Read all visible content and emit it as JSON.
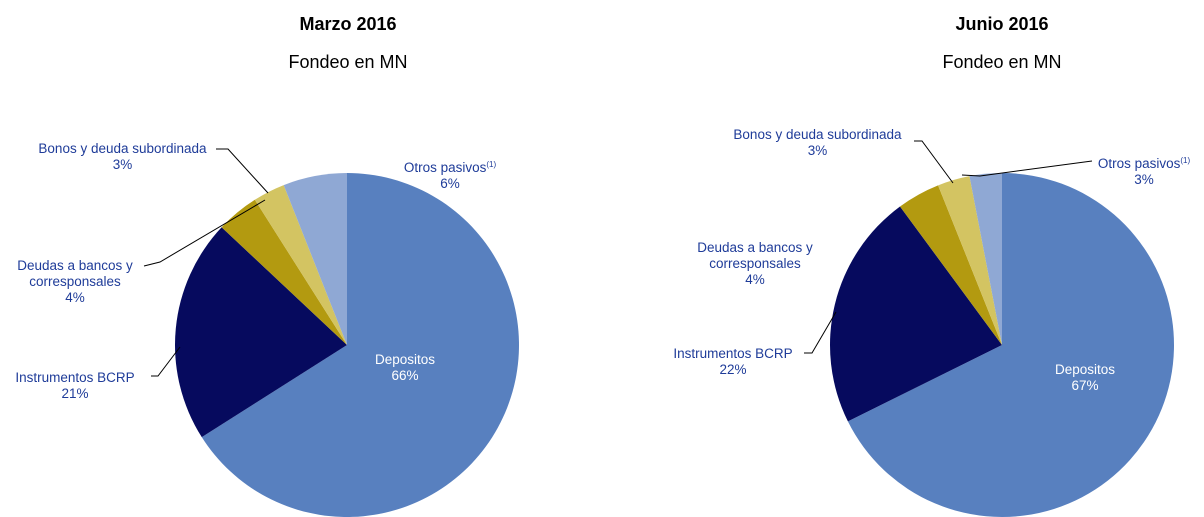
{
  "chart_data": [
    {
      "type": "pie",
      "title": "Marzo 2016",
      "subtitle": "Fondeo en MN",
      "slices": [
        {
          "label": "Depositos",
          "value": 66,
          "display": "66%",
          "color": "#5880bf"
        },
        {
          "label": "Instrumentos BCRP",
          "value": 21,
          "display": "21%",
          "color": "#060a5e"
        },
        {
          "label": "Deudas a bancos y corresponsales",
          "value": 4,
          "display": "4%",
          "color": "#b39a10"
        },
        {
          "label": "Bonos y deuda subordinada",
          "value": 3,
          "display": "3%",
          "color": "#d3c462"
        },
        {
          "label": "Otros pasivos",
          "value": 6,
          "display": "6%",
          "color": "#8fa8d4"
        }
      ]
    },
    {
      "type": "pie",
      "title": "Junio 2016",
      "subtitle": "Fondeo en MN",
      "slices": [
        {
          "label": "Depositos",
          "value": 67,
          "display": "67%",
          "color": "#5880bf"
        },
        {
          "label": "Instrumentos BCRP",
          "value": 22,
          "display": "22%",
          "color": "#060a5e"
        },
        {
          "label": "Deudas a bancos y corresponsales",
          "value": 4,
          "display": "4%",
          "color": "#b39a10"
        },
        {
          "label": "Bonos y deuda subordinada",
          "value": 3,
          "display": "3%",
          "color": "#d3c462"
        },
        {
          "label": "Otros pasivos",
          "value": 3,
          "display": "3%",
          "color": "#8fa8d4"
        }
      ]
    }
  ],
  "labels": {
    "deudas_line1": "Deudas a bancos y",
    "deudas_line2": "corresponsales",
    "otros_sup": "(1)"
  }
}
